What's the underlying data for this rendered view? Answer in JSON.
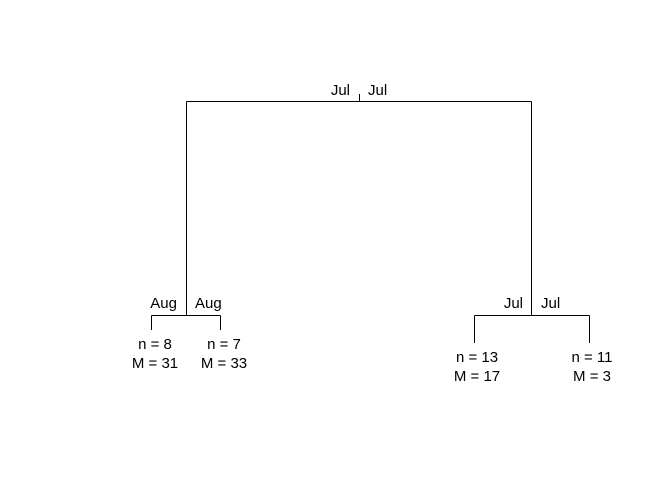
{
  "tree": {
    "root": {
      "left_label": "Jul",
      "right_label": "Jul"
    },
    "left_split": {
      "left_label": "Aug",
      "right_label": "Aug"
    },
    "right_split": {
      "left_label": "Jul",
      "right_label": "Jul"
    },
    "leaves": [
      {
        "n": "n = 8",
        "m": "M = 31"
      },
      {
        "n": "n = 7",
        "m": "M = 33"
      },
      {
        "n": "n = 13",
        "m": "M = 17"
      },
      {
        "n": "n = 11",
        "m": "M = 3"
      }
    ]
  }
}
